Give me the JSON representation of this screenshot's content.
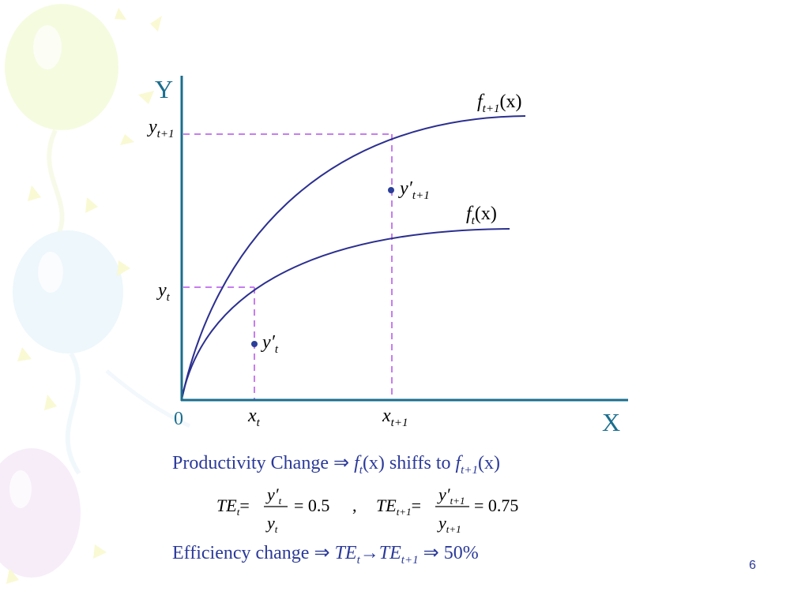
{
  "axes": {
    "y_label": "Y",
    "x_label": "X",
    "origin": "0"
  },
  "curves": {
    "upper": {
      "base": "f",
      "sub": "t+1",
      "arg": "(x)"
    },
    "lower": {
      "base": "f",
      "sub": "t",
      "arg": "(x)"
    }
  },
  "y_ticks": {
    "upper": {
      "base": "y",
      "sub": "t+1"
    },
    "lower": {
      "base": "y",
      "sub": "t"
    }
  },
  "x_ticks": {
    "left": {
      "base": "x",
      "sub": "t"
    },
    "right": {
      "base": "x",
      "sub": "t+1"
    }
  },
  "points": {
    "upper": {
      "base": "y′",
      "sub": "t+1"
    },
    "lower": {
      "base": "y′",
      "sub": "t"
    }
  },
  "productivity_line": {
    "prefix": "Productivity  Change",
    "arrow": "⇒",
    "f": "f",
    "f_sub": "t",
    "arg": "(x)",
    "middle": "shiffs to",
    "f2": "f",
    "f2_sub": "t+1",
    "arg2": "(x)"
  },
  "formulas": {
    "te_t": {
      "lhs": "TE",
      "lhs_sub": "t",
      "eq": "=",
      "num": "y′",
      "num_sub": "t",
      "den": "y",
      "den_sub": "t",
      "result": "= 0.5"
    },
    "separator": ",",
    "te_t1": {
      "lhs": "TE",
      "lhs_sub": "t+1",
      "eq": "=",
      "num": "y′",
      "num_sub": "t+1",
      "den": "y",
      "den_sub": "t+1",
      "result": "= 0.75"
    }
  },
  "efficiency_line": {
    "prefix": "Efficiency change",
    "arrow1": "⇒",
    "te1": "TE",
    "te1_sub": "t",
    "arrow2": "→",
    "te2": "TE",
    "te2_sub": "t+1",
    "arrow3": "⇒",
    "result": "50%"
  },
  "page_number": "6",
  "colors": {
    "axis": "#1a6e8e",
    "curve": "#2b2f8f",
    "guide": "#c77df0",
    "text": "#2b3a9a",
    "point": "#2b3f9a"
  }
}
